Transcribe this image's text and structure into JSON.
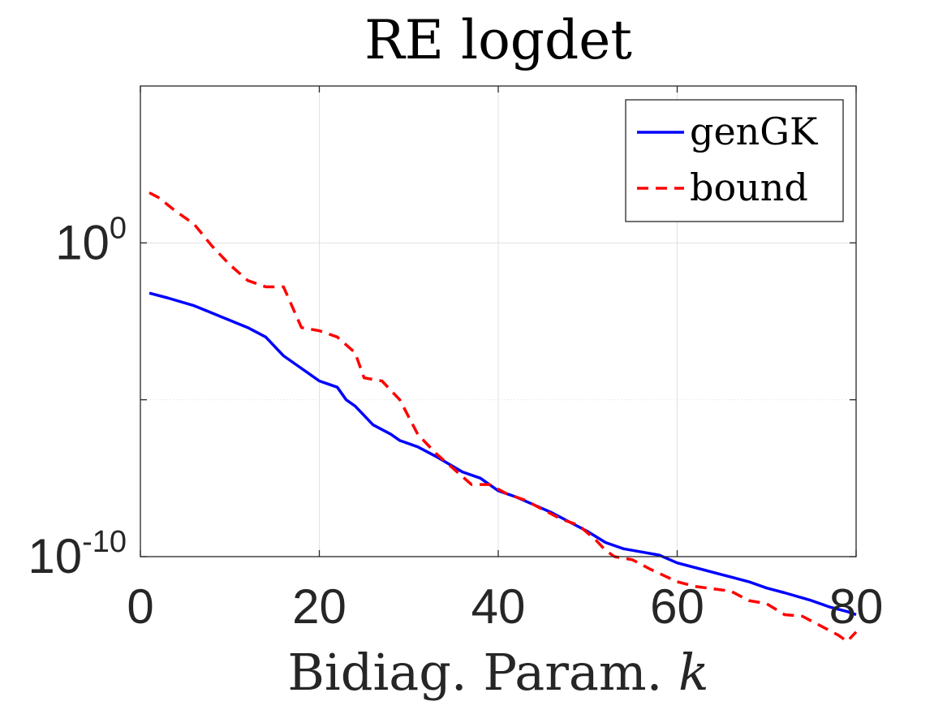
{
  "chart_data": {
    "type": "line",
    "title": "RE logdet",
    "xlabel": "Bidiag. Param. k",
    "xlabel_text": "Bidiag. Param. ",
    "xlabel_var": "k",
    "ylabel": "",
    "xlim": [
      0,
      80
    ],
    "ylim_log10": [
      -10,
      5
    ],
    "y_scale": "log",
    "grid": true,
    "legend_position": "top-right",
    "x_ticks": [
      "0",
      "20",
      "40",
      "60",
      "80"
    ],
    "y_ticks": [
      {
        "base": "10",
        "exp": "0",
        "log10": 0
      },
      {
        "base": "10",
        "exp": "-10",
        "log10": -10
      }
    ],
    "series": [
      {
        "name": "genGK",
        "color": "#0000ff",
        "style": "solid",
        "x": [
          1,
          3,
          6,
          9,
          12,
          14,
          16,
          18,
          20,
          21,
          22,
          23,
          24,
          26,
          28,
          29,
          31,
          33,
          36,
          38,
          40,
          42,
          44,
          46,
          48,
          50,
          52,
          54,
          56,
          58,
          60,
          62,
          64,
          66,
          68,
          70,
          72,
          75,
          77,
          79,
          80
        ],
        "log10_y": [
          -1.6,
          -1.75,
          -2.0,
          -2.35,
          -2.7,
          -3.0,
          -3.6,
          -4.0,
          -4.4,
          -4.5,
          -4.6,
          -5.0,
          -5.2,
          -5.8,
          -6.1,
          -6.3,
          -6.5,
          -6.8,
          -7.3,
          -7.5,
          -7.9,
          -8.1,
          -8.35,
          -8.6,
          -8.9,
          -9.2,
          -9.55,
          -9.75,
          -9.85,
          -9.95,
          -10.2,
          -10.35,
          -10.5,
          -10.65,
          -10.8,
          -11.0,
          -11.15,
          -11.4,
          -11.6,
          -11.75,
          -11.85
        ]
      },
      {
        "name": "bound",
        "color": "#ff0000",
        "style": "dashed",
        "x": [
          1,
          2,
          4,
          6,
          8,
          10,
          12,
          14,
          16,
          18,
          20,
          22,
          24,
          25,
          27,
          29,
          31,
          33,
          35,
          37,
          39,
          41,
          43,
          45,
          47,
          49,
          51,
          52,
          53,
          55,
          57,
          60,
          62,
          66,
          68,
          70,
          72,
          74,
          76,
          78,
          79,
          80
        ],
        "log10_y": [
          1.6,
          1.45,
          1.0,
          0.6,
          -0.1,
          -0.7,
          -1.2,
          -1.4,
          -1.4,
          -2.7,
          -2.8,
          -3.0,
          -3.5,
          -4.3,
          -4.4,
          -5.0,
          -6.1,
          -6.7,
          -7.2,
          -7.7,
          -7.7,
          -8.0,
          -8.2,
          -8.5,
          -8.8,
          -9.0,
          -9.5,
          -9.8,
          -10.0,
          -10.1,
          -10.4,
          -10.8,
          -10.95,
          -11.1,
          -11.4,
          -11.5,
          -11.85,
          -11.9,
          -12.2,
          -12.5,
          -12.7,
          -12.4
        ]
      }
    ]
  }
}
